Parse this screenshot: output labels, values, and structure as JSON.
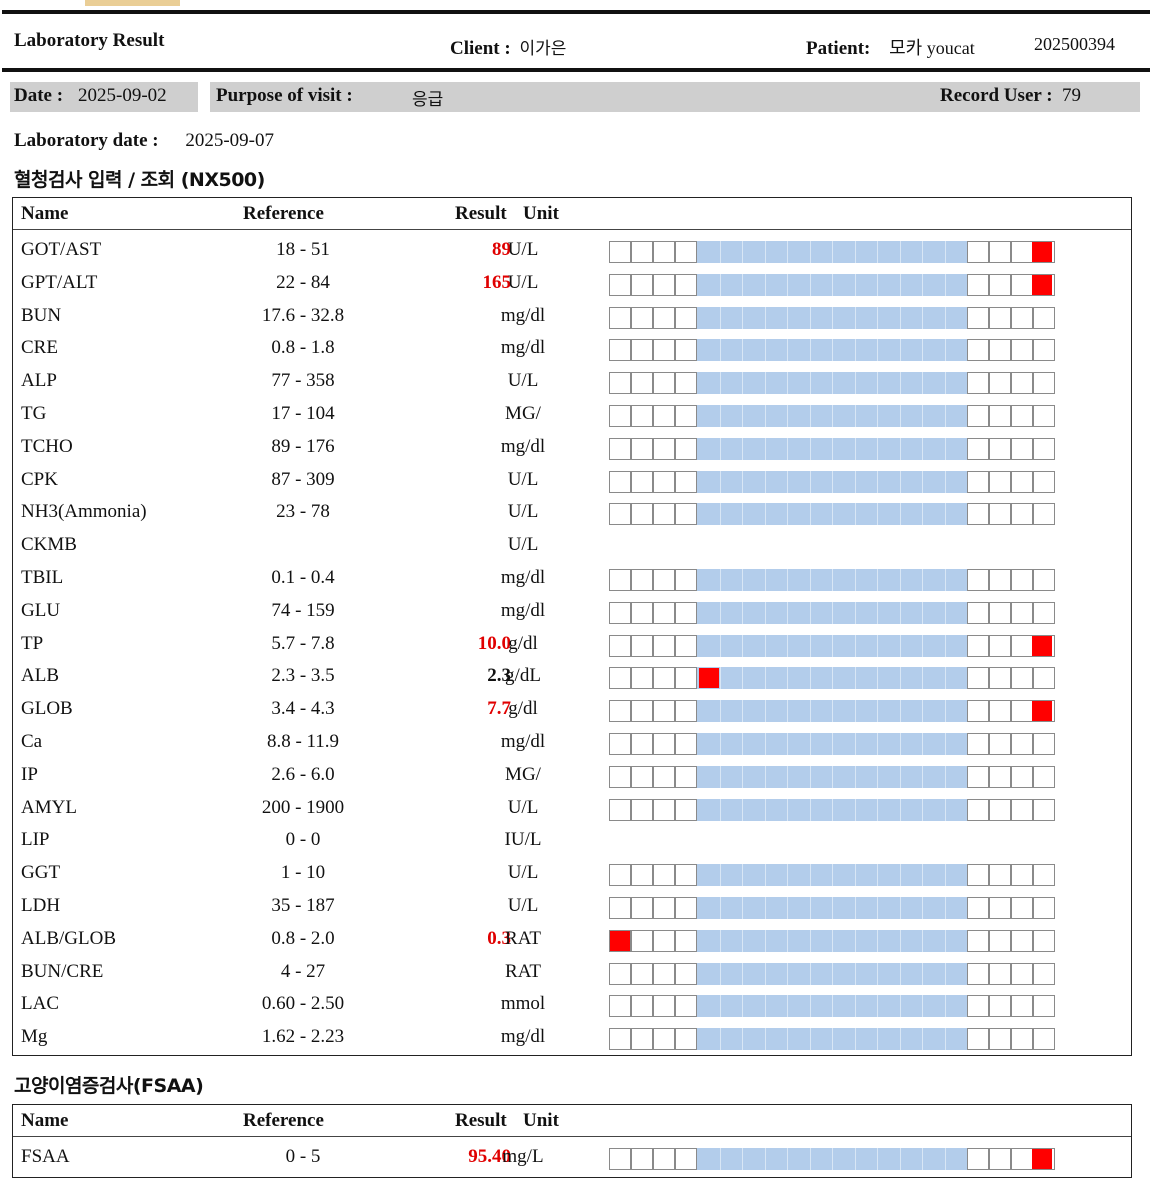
{
  "header": {
    "title": "Laboratory Result",
    "client_label": "Client :",
    "client_value": "이가은",
    "patient_label": "Patient:",
    "patient_value": "모카 youcat",
    "patient_id": "202500394"
  },
  "visit": {
    "date_label": "Date :",
    "date_value": "2025-09-02",
    "purpose_label": "Purpose of visit :",
    "purpose_value": "응급",
    "record_user_label": "Record User :",
    "record_user_value": "79"
  },
  "laboratory_date": {
    "label": "Laboratory date :",
    "value": "2025-09-07"
  },
  "sections": [
    {
      "title": "혈청검사 입력 / 조회 (NX500)",
      "columns": {
        "name": "Name",
        "reference": "Reference",
        "result": "Result",
        "unit": "Unit"
      },
      "rows": [
        {
          "name": "GOT/AST",
          "reference": "18 - 51",
          "result": "89",
          "unit": "U/L",
          "flag": "high",
          "bar": true,
          "marker_fraction": 1.0
        },
        {
          "name": "GPT/ALT",
          "reference": "22 - 84",
          "result": "165",
          "unit": "U/L",
          "flag": "high",
          "bar": true,
          "marker_fraction": 1.0
        },
        {
          "name": "BUN",
          "reference": "17.6 - 32.8",
          "result": "",
          "unit": "mg/dl",
          "flag": "",
          "bar": true,
          "marker_fraction": null
        },
        {
          "name": "CRE",
          "reference": "0.8 - 1.8",
          "result": "",
          "unit": "mg/dl",
          "flag": "",
          "bar": true,
          "marker_fraction": null
        },
        {
          "name": "ALP",
          "reference": "77 - 358",
          "result": "",
          "unit": "U/L",
          "flag": "",
          "bar": true,
          "marker_fraction": null
        },
        {
          "name": "TG",
          "reference": "17 - 104",
          "result": "",
          "unit": "MG/",
          "flag": "",
          "bar": true,
          "marker_fraction": null
        },
        {
          "name": "TCHO",
          "reference": "89 - 176",
          "result": "",
          "unit": "mg/dl",
          "flag": "",
          "bar": true,
          "marker_fraction": null
        },
        {
          "name": "CPK",
          "reference": "87 - 309",
          "result": "",
          "unit": "U/L",
          "flag": "",
          "bar": true,
          "marker_fraction": null
        },
        {
          "name": "NH3(Ammonia)",
          "reference": "23 - 78",
          "result": "",
          "unit": "U/L",
          "flag": "",
          "bar": true,
          "marker_fraction": null
        },
        {
          "name": "CKMB",
          "reference": "",
          "result": "",
          "unit": "U/L",
          "flag": "",
          "bar": false,
          "marker_fraction": null
        },
        {
          "name": "TBIL",
          "reference": "0.1 - 0.4",
          "result": "",
          "unit": "mg/dl",
          "flag": "",
          "bar": true,
          "marker_fraction": null
        },
        {
          "name": "GLU",
          "reference": "74 - 159",
          "result": "",
          "unit": "mg/dl",
          "flag": "",
          "bar": true,
          "marker_fraction": null
        },
        {
          "name": "TP",
          "reference": "5.7 - 7.8",
          "result": "10.0",
          "unit": "g/dl",
          "flag": "high",
          "bar": true,
          "marker_fraction": 1.0
        },
        {
          "name": "ALB",
          "reference": "2.3 - 3.5",
          "result": "2.3",
          "unit": "g/dL",
          "flag": "normal",
          "bar": true,
          "marker_fraction": 0.21
        },
        {
          "name": "GLOB",
          "reference": "3.4 - 4.3",
          "result": "7.7",
          "unit": "g/dl",
          "flag": "high",
          "bar": true,
          "marker_fraction": 1.0
        },
        {
          "name": "Ca",
          "reference": "8.8 - 11.9",
          "result": "",
          "unit": "mg/dl",
          "flag": "",
          "bar": true,
          "marker_fraction": null
        },
        {
          "name": "IP",
          "reference": "2.6 - 6.0",
          "result": "",
          "unit": "MG/",
          "flag": "",
          "bar": true,
          "marker_fraction": null
        },
        {
          "name": "AMYL",
          "reference": "200 - 1900",
          "result": "",
          "unit": "U/L",
          "flag": "",
          "bar": true,
          "marker_fraction": null
        },
        {
          "name": "LIP",
          "reference": "0 - 0",
          "result": "",
          "unit": "IU/L",
          "flag": "",
          "bar": false,
          "marker_fraction": null
        },
        {
          "name": "GGT",
          "reference": "1 - 10",
          "result": "",
          "unit": "U/L",
          "flag": "",
          "bar": true,
          "marker_fraction": null
        },
        {
          "name": "LDH",
          "reference": "35 - 187",
          "result": "",
          "unit": "U/L",
          "flag": "",
          "bar": true,
          "marker_fraction": null
        },
        {
          "name": "ALB/GLOB",
          "reference": "0.8 - 2.0",
          "result": "0.3",
          "unit": "RAT",
          "flag": "low",
          "bar": true,
          "marker_fraction": 0.0
        },
        {
          "name": "BUN/CRE",
          "reference": "4 - 27",
          "result": "",
          "unit": "RAT",
          "flag": "",
          "bar": true,
          "marker_fraction": null
        },
        {
          "name": "LAC",
          "reference": "0.60 - 2.50",
          "result": "",
          "unit": "mmol",
          "flag": "",
          "bar": true,
          "marker_fraction": null
        },
        {
          "name": "Mg",
          "reference": "1.62 - 2.23",
          "result": "",
          "unit": "mg/dl",
          "flag": "",
          "bar": true,
          "marker_fraction": null
        }
      ]
    },
    {
      "title": "고양이염증검사(FSAA)",
      "columns": {
        "name": "Name",
        "reference": "Reference",
        "result": "Result",
        "unit": "Unit"
      },
      "rows": [
        {
          "name": "FSAA",
          "reference": "0 - 5",
          "result": "95.40",
          "unit": "mg/L",
          "flag": "high",
          "bar": true,
          "marker_fraction": 1.0
        }
      ]
    }
  ],
  "colors": {
    "high": "#e00000",
    "range_band": "#b3cdeb",
    "marker": "#ff0000",
    "header_bar": "#cfcfcf"
  }
}
